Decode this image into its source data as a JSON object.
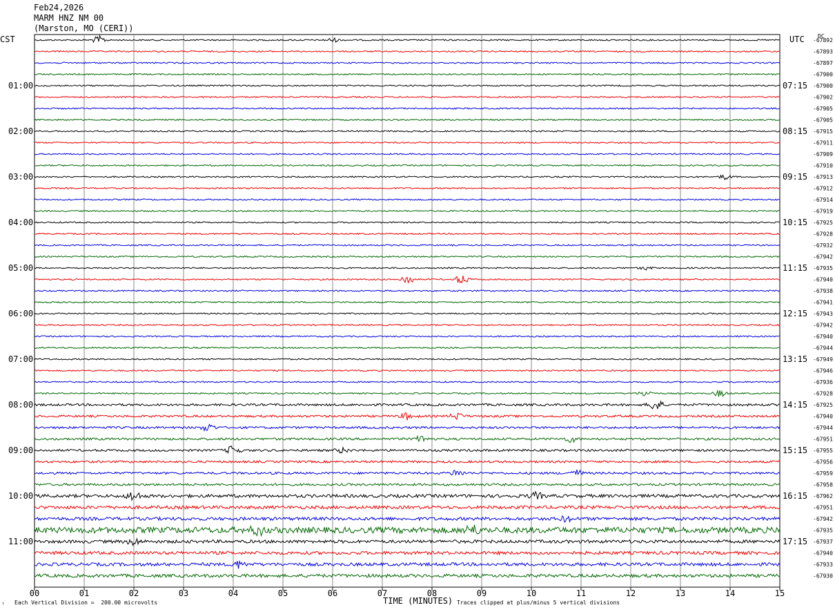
{
  "header": {
    "date": "Feb24,2026",
    "station": "MARM HNZ NM 00",
    "location": "(Marston, MO (CERI))"
  },
  "left_tz": "CST",
  "right_tz": "UTC",
  "dc_label": "DC",
  "footer": {
    "scale_note": "Each Vertical Division =  200.00 microvolts",
    "clip_note": "Traces clipped at plus/minus 5 vertical divisions",
    "corner_mark": "ᵀ"
  },
  "chart_data": {
    "type": "line",
    "title": "",
    "xlabel": "TIME (MINUTES)",
    "xlim": [
      0,
      15
    ],
    "x_ticks": [
      "00",
      "01",
      "02",
      "03",
      "04",
      "05",
      "06",
      "07",
      "08",
      "09",
      "10",
      "11",
      "12",
      "13",
      "14",
      "15"
    ],
    "trace_colors": [
      "#000000",
      "#ee0000",
      "#0000dd",
      "#006600"
    ],
    "left_hour_labels": [
      "01:00",
      "02:00",
      "03:00",
      "04:00",
      "05:00",
      "06:00",
      "07:00",
      "08:00",
      "09:00",
      "10:00",
      "11:00"
    ],
    "right_hour_labels": [
      "07:15",
      "08:15",
      "09:15",
      "10:15",
      "11:15",
      "12:15",
      "13:15",
      "14:15",
      "15:15",
      "16:15",
      "17:15"
    ],
    "dc_offsets": [
      "-67892",
      "-67893",
      "-67897",
      "-67900",
      "-67900",
      "-67902",
      "-67905",
      "-67905",
      "-67915",
      "-67911",
      "-67909",
      "-67910",
      "-67913",
      "-67912",
      "-67914",
      "-67919",
      "-67925",
      "-67928",
      "-67932",
      "-67942",
      "-67935",
      "-67940",
      "-67938",
      "-67941",
      "-67943",
      "-67942",
      "-67940",
      "-67944",
      "-67949",
      "-67946",
      "-67936",
      "-67928",
      "-67925",
      "-67940",
      "-67944",
      "-67951",
      "-67955",
      "-67956",
      "-67959",
      "-67958",
      "-67962",
      "-67951",
      "-67942",
      "-67935",
      "-67937",
      "-67940",
      "-67933",
      "-67930"
    ],
    "events": [
      {
        "trace": 0,
        "minute": 1.3,
        "amp": 2.5
      },
      {
        "trace": 0,
        "minute": 6.0,
        "amp": 1.2
      },
      {
        "trace": 12,
        "minute": 13.9,
        "amp": 1.5
      },
      {
        "trace": 20,
        "minute": 12.3,
        "amp": 1.0
      },
      {
        "trace": 21,
        "minute": 7.5,
        "amp": 3.0
      },
      {
        "trace": 21,
        "minute": 8.6,
        "amp": 3.0
      },
      {
        "trace": 31,
        "minute": 12.3,
        "amp": 2.0
      },
      {
        "trace": 31,
        "minute": 13.8,
        "amp": 2.0
      },
      {
        "trace": 32,
        "minute": 12.5,
        "amp": 4.0
      },
      {
        "trace": 33,
        "minute": 7.5,
        "amp": 2.0
      },
      {
        "trace": 33,
        "minute": 8.5,
        "amp": 2.0
      },
      {
        "trace": 34,
        "minute": 3.5,
        "amp": 2.5
      },
      {
        "trace": 35,
        "minute": 7.8,
        "amp": 2.0
      },
      {
        "trace": 35,
        "minute": 10.8,
        "amp": 1.8
      },
      {
        "trace": 36,
        "minute": 4.0,
        "amp": 3.0
      },
      {
        "trace": 36,
        "minute": 6.2,
        "amp": 1.5
      },
      {
        "trace": 38,
        "minute": 8.5,
        "amp": 2.0
      },
      {
        "trace": 38,
        "minute": 10.9,
        "amp": 2.0
      },
      {
        "trace": 40,
        "minute": 2.0,
        "amp": 3.0
      },
      {
        "trace": 40,
        "minute": 10.1,
        "amp": 2.0
      },
      {
        "trace": 42,
        "minute": 10.7,
        "amp": 1.5
      },
      {
        "trace": 43,
        "minute": 4.5,
        "amp": 3.0
      },
      {
        "trace": 43,
        "minute": 8.8,
        "amp": 3.0
      },
      {
        "trace": 44,
        "minute": 2.0,
        "amp": 2.0
      },
      {
        "trace": 46,
        "minute": 4.1,
        "amp": 2.0
      }
    ]
  }
}
